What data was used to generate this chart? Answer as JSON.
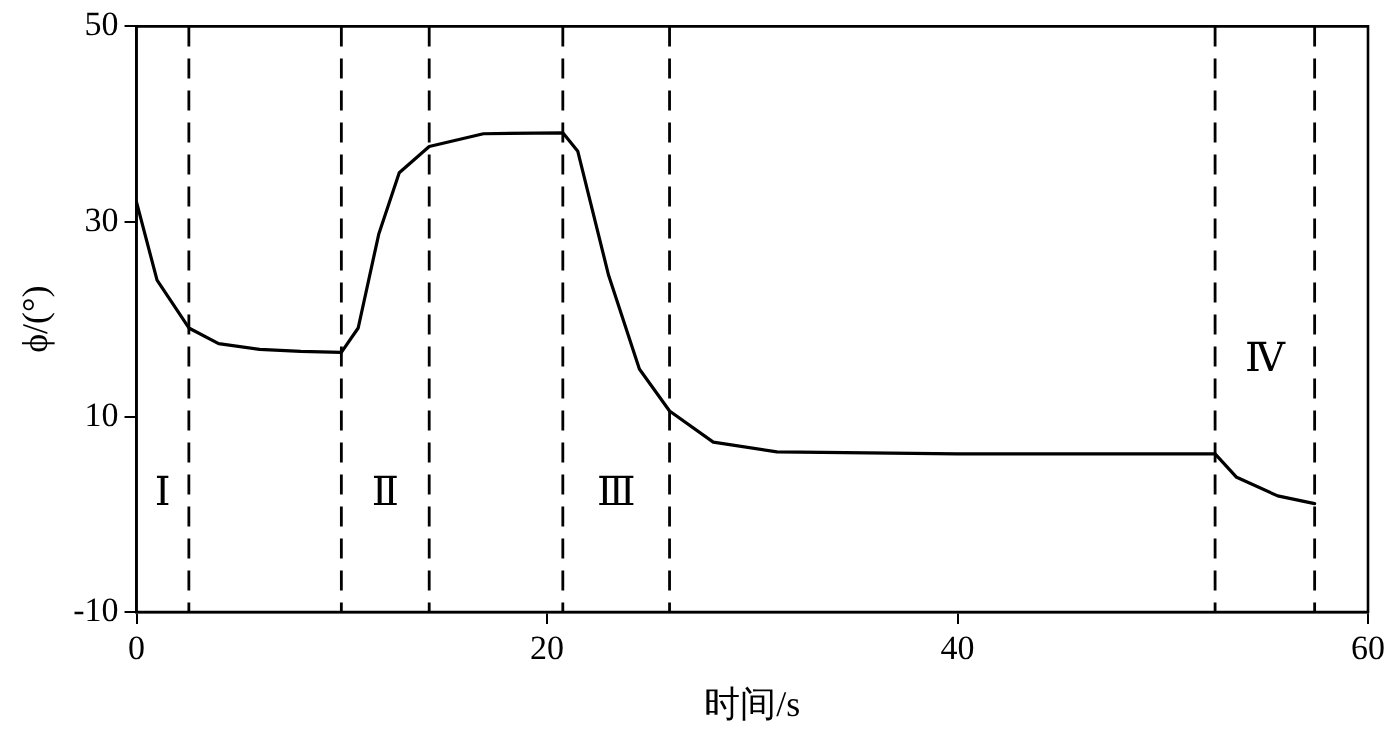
{
  "chart_data": {
    "type": "line",
    "xlabel": "时间/s",
    "ylabel": "ϕ/(°)",
    "xlim": [
      0,
      60
    ],
    "xticks": [
      0,
      20,
      40,
      60
    ],
    "ylim": [
      -10,
      50
    ],
    "yticks": [
      -10,
      10,
      30,
      50
    ],
    "grid": false,
    "legend": false,
    "marker": "none",
    "line_style": "solid",
    "series": [
      {
        "color": "#000000",
        "x": [
          0,
          1,
          2.55,
          4,
          6,
          8,
          9.98,
          10.8,
          11.8,
          12.8,
          14.26,
          16.9,
          20.77,
          21.5,
          23,
          24.5,
          25.97,
          28.1,
          31.2,
          40,
          50,
          52.55,
          53.6,
          55.6,
          57.4
        ],
        "values": [
          32,
          24,
          19.1,
          17.5,
          16.9,
          16.7,
          16.6,
          19.1,
          28.7,
          35,
          37.7,
          39,
          39.1,
          37.2,
          24.5,
          14.9,
          10.6,
          7.4,
          6.4,
          6.2,
          6.2,
          6.2,
          3.8,
          1.9,
          1.1
        ]
      }
    ],
    "ref_lines": [
      {
        "axis": "x",
        "value": 2.55,
        "line_style": "dashed"
      },
      {
        "axis": "x",
        "value": 9.98,
        "line_style": "dashed"
      },
      {
        "axis": "x",
        "value": 14.26,
        "line_style": "dashed"
      },
      {
        "axis": "x",
        "value": 20.77,
        "line_style": "dashed"
      },
      {
        "axis": "x",
        "value": 25.97,
        "line_style": "dashed"
      },
      {
        "axis": "x",
        "value": 52.55,
        "line_style": "dashed"
      },
      {
        "axis": "x",
        "value": 57.4,
        "line_style": "dashed"
      }
    ],
    "annotations": [
      "Ⅰ",
      "Ⅱ",
      "Ⅲ",
      "Ⅳ"
    ]
  }
}
